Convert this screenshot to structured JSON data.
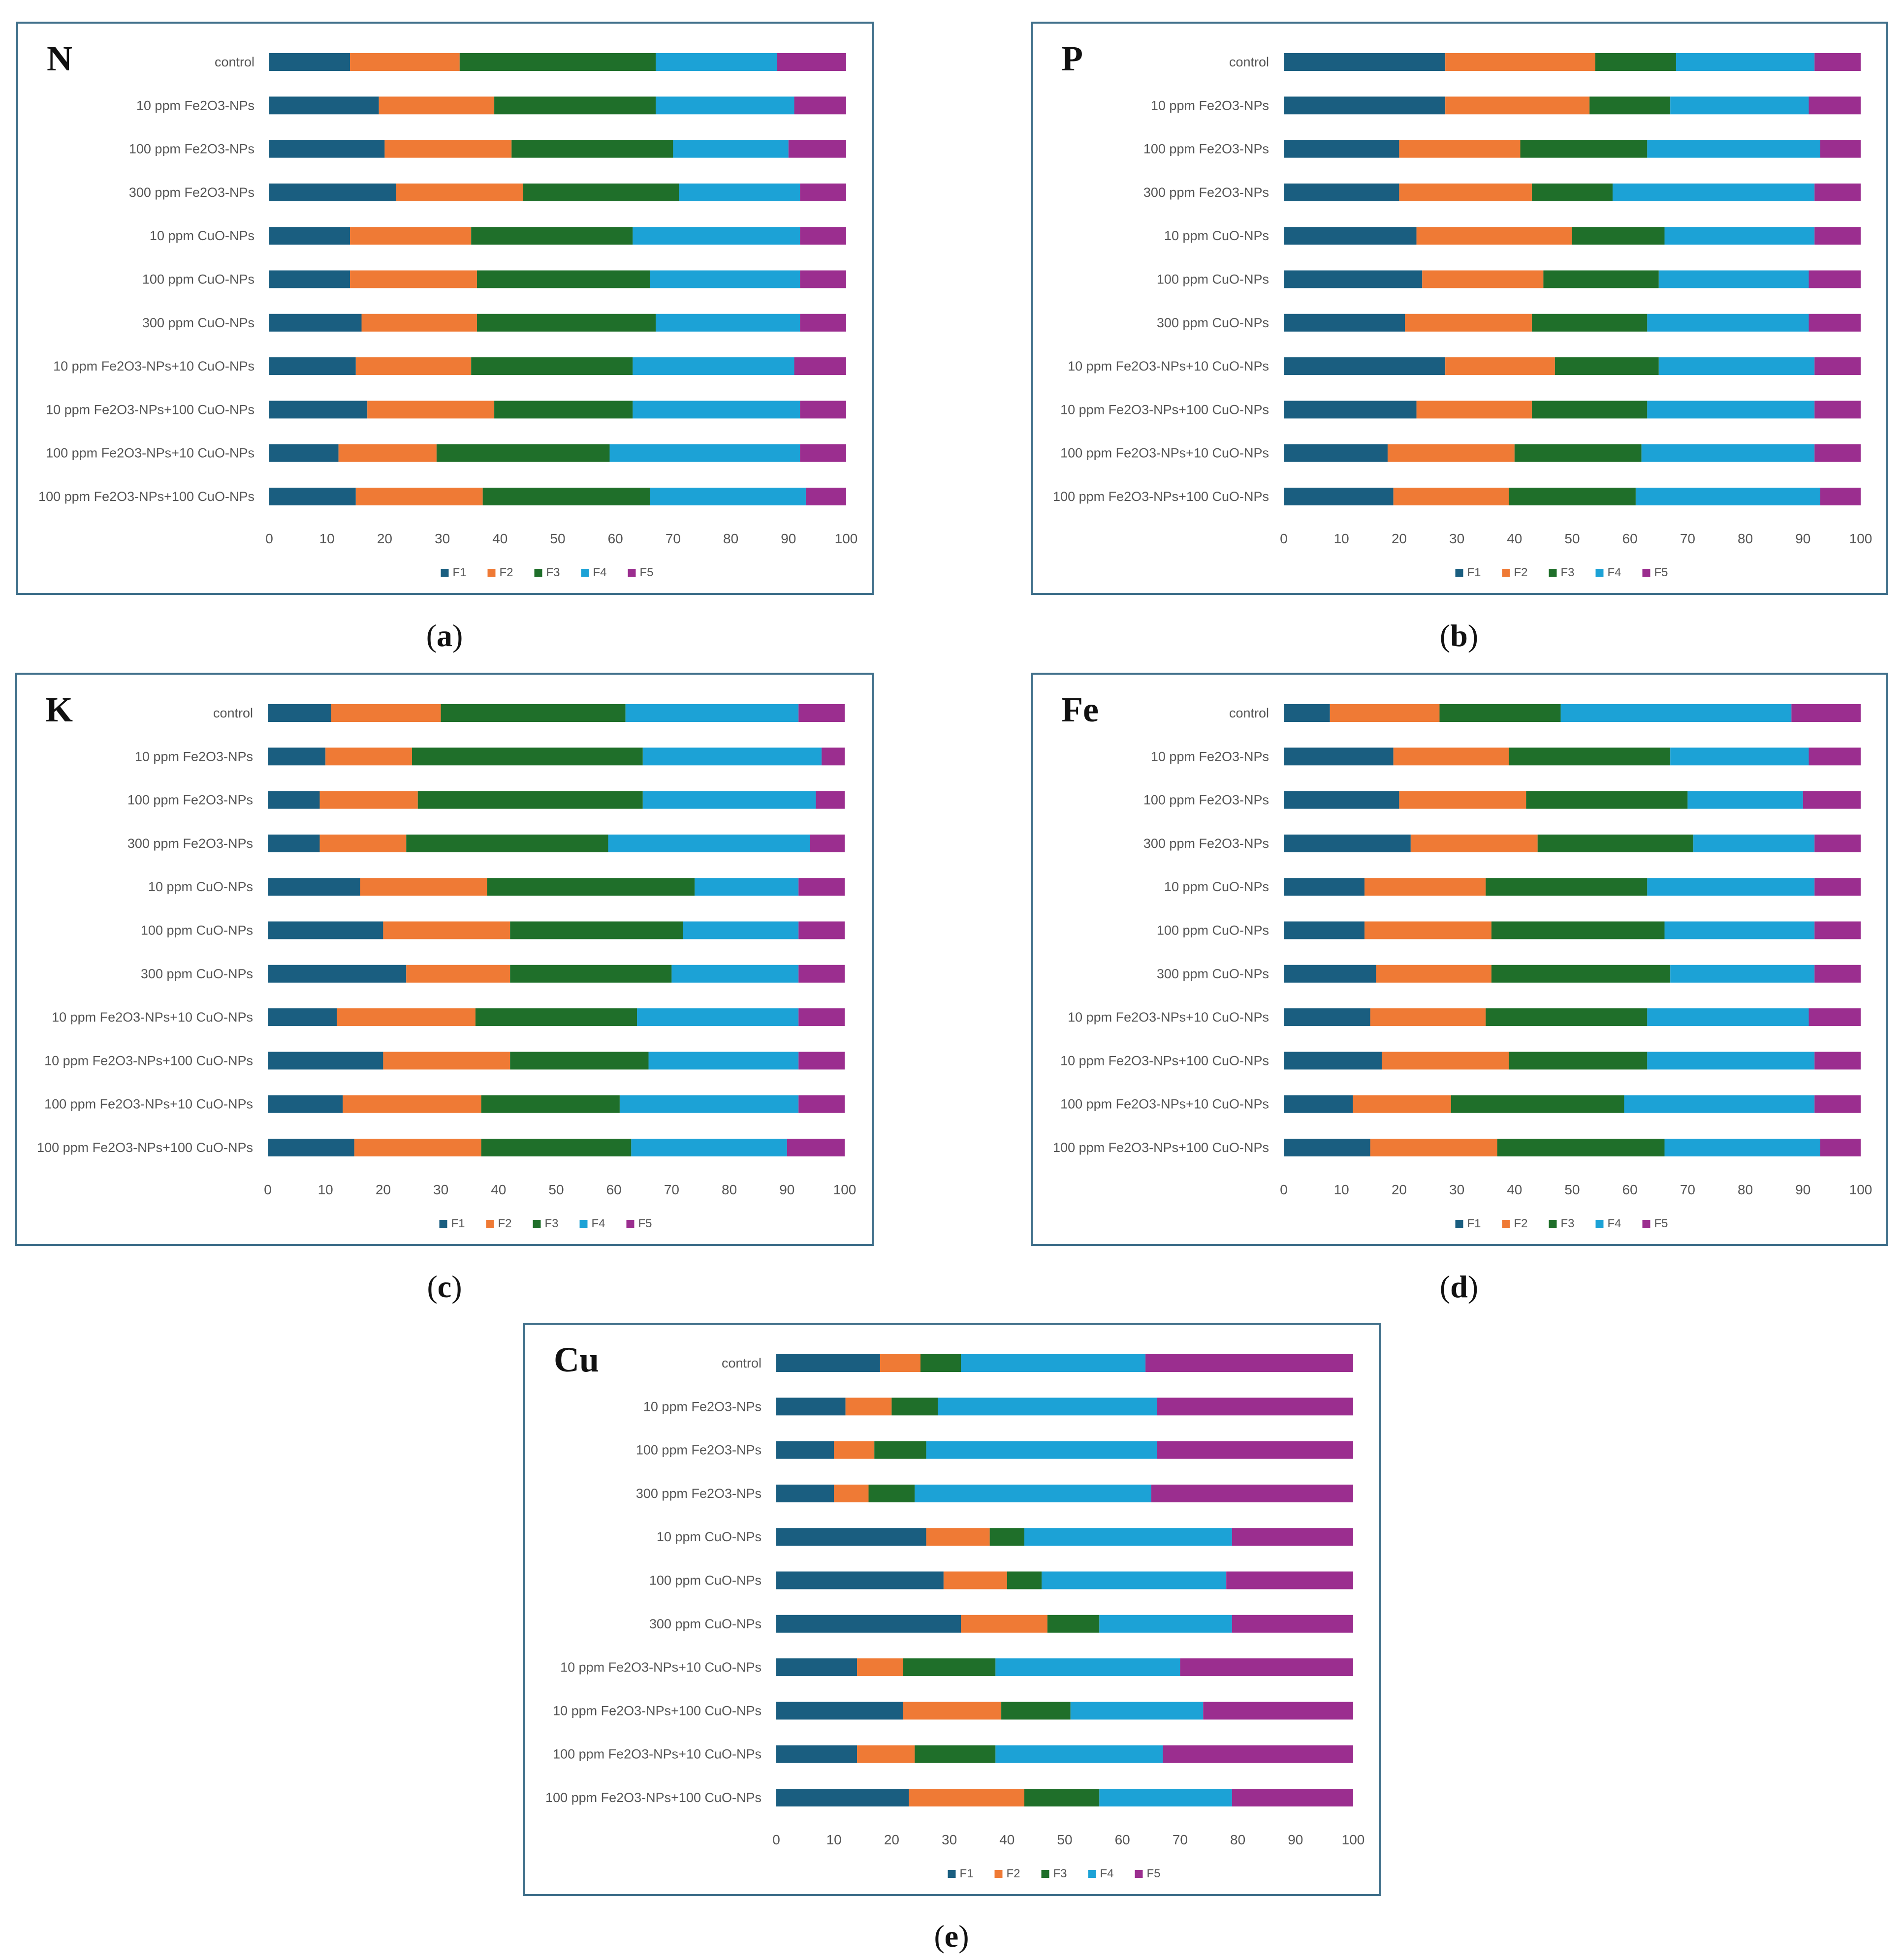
{
  "colors": {
    "F1": "#1a5e80",
    "F2": "#ef7a35",
    "F3": "#1f6f2a",
    "F4": "#1ca2d6",
    "F5": "#9b2e8f"
  },
  "chart_data": [
    {
      "type": "bar",
      "panel_letter": "N",
      "caption": "a",
      "categories": [
        "control",
        "10 ppm Fe2O3-NPs",
        "100 ppm Fe2O3-NPs",
        "300 ppm Fe2O3-NPs",
        "10 ppm CuO-NPs",
        "100 ppm CuO-NPs",
        "300 ppm CuO-NPs",
        "10 ppm Fe2O3-NPs+10 CuO-NPs",
        "10 ppm Fe2O3-NPs+100 CuO-NPs",
        "100 ppm Fe2O3-NPs+10 CuO-NPs",
        "100 ppm Fe2O3-NPs+100 CuO-NPs"
      ],
      "xlim": [
        0,
        100
      ],
      "xticks": [
        "0",
        "10",
        "20",
        "30",
        "40",
        "50",
        "60",
        "70",
        "80",
        "90",
        "100"
      ],
      "legend_position": "bottom",
      "series": [
        {
          "name": "F1",
          "values": [
            14,
            19,
            20,
            22,
            14,
            14,
            16,
            15,
            17,
            12,
            15
          ]
        },
        {
          "name": "F2",
          "values": [
            19,
            20,
            22,
            22,
            21,
            22,
            20,
            20,
            22,
            17,
            22
          ]
        },
        {
          "name": "F3",
          "values": [
            34,
            28,
            28,
            27,
            28,
            30,
            31,
            28,
            24,
            30,
            29
          ]
        },
        {
          "name": "F4",
          "values": [
            21,
            24,
            20,
            21,
            29,
            26,
            25,
            28,
            29,
            33,
            27
          ]
        },
        {
          "name": "F5",
          "values": [
            12,
            9,
            10,
            8,
            8,
            8,
            8,
            9,
            8,
            8,
            7
          ]
        }
      ]
    },
    {
      "type": "bar",
      "panel_letter": "P",
      "caption": "b",
      "categories": [
        "control",
        "10 ppm Fe2O3-NPs",
        "100 ppm Fe2O3-NPs",
        "300 ppm Fe2O3-NPs",
        "10 ppm CuO-NPs",
        "100 ppm CuO-NPs",
        "300 ppm CuO-NPs",
        "10 ppm Fe2O3-NPs+10 CuO-NPs",
        "10 ppm Fe2O3-NPs+100 CuO-NPs",
        "100 ppm Fe2O3-NPs+10 CuO-NPs",
        "100 ppm Fe2O3-NPs+100 CuO-NPs"
      ],
      "xlim": [
        0,
        100
      ],
      "xticks": [
        "0",
        "10",
        "20",
        "30",
        "40",
        "50",
        "60",
        "70",
        "80",
        "90",
        "100"
      ],
      "legend_position": "bottom",
      "series": [
        {
          "name": "F1",
          "values": [
            28,
            28,
            20,
            20,
            23,
            24,
            21,
            28,
            23,
            18,
            19
          ]
        },
        {
          "name": "F2",
          "values": [
            26,
            25,
            21,
            23,
            27,
            21,
            22,
            19,
            20,
            22,
            20
          ]
        },
        {
          "name": "F3",
          "values": [
            14,
            14,
            22,
            14,
            16,
            20,
            20,
            18,
            20,
            22,
            22
          ]
        },
        {
          "name": "F4",
          "values": [
            24,
            24,
            30,
            35,
            26,
            26,
            28,
            27,
            29,
            30,
            32
          ]
        },
        {
          "name": "F5",
          "values": [
            8,
            9,
            7,
            8,
            8,
            9,
            9,
            8,
            8,
            8,
            7
          ]
        }
      ]
    },
    {
      "type": "bar",
      "panel_letter": "K",
      "caption": "c",
      "categories": [
        "control",
        "10 ppm Fe2O3-NPs",
        "100 ppm Fe2O3-NPs",
        "300 ppm Fe2O3-NPs",
        "10 ppm CuO-NPs",
        "100 ppm CuO-NPs",
        "300 ppm CuO-NPs",
        "10 ppm Fe2O3-NPs+10 CuO-NPs",
        "10 ppm Fe2O3-NPs+100 CuO-NPs",
        "100 ppm Fe2O3-NPs+10 CuO-NPs",
        "100 ppm Fe2O3-NPs+100 CuO-NPs"
      ],
      "xlim": [
        0,
        100
      ],
      "xticks": [
        "0",
        "10",
        "20",
        "30",
        "40",
        "50",
        "60",
        "70",
        "80",
        "90",
        "100"
      ],
      "legend_position": "bottom",
      "series": [
        {
          "name": "F1",
          "values": [
            11,
            10,
            9,
            9,
            16,
            20,
            24,
            12,
            20,
            13,
            15
          ]
        },
        {
          "name": "F2",
          "values": [
            19,
            15,
            17,
            15,
            22,
            22,
            18,
            24,
            22,
            24,
            22
          ]
        },
        {
          "name": "F3",
          "values": [
            32,
            40,
            39,
            35,
            36,
            30,
            28,
            28,
            24,
            24,
            26
          ]
        },
        {
          "name": "F4",
          "values": [
            30,
            31,
            30,
            35,
            18,
            20,
            22,
            28,
            26,
            31,
            27
          ]
        },
        {
          "name": "F5",
          "values": [
            8,
            4,
            5,
            6,
            8,
            8,
            8,
            8,
            8,
            8,
            10
          ]
        }
      ]
    },
    {
      "type": "bar",
      "panel_letter": "Fe",
      "caption": "d",
      "categories": [
        "control",
        "10 ppm Fe2O3-NPs",
        "100 ppm Fe2O3-NPs",
        "300 ppm Fe2O3-NPs",
        "10 ppm CuO-NPs",
        "100 ppm CuO-NPs",
        "300 ppm CuO-NPs",
        "10 ppm Fe2O3-NPs+10 CuO-NPs",
        "10 ppm Fe2O3-NPs+100 CuO-NPs",
        "100 ppm Fe2O3-NPs+10 CuO-NPs",
        "100 ppm Fe2O3-NPs+100 CuO-NPs"
      ],
      "xlim": [
        0,
        100
      ],
      "xticks": [
        "0",
        "10",
        "20",
        "30",
        "40",
        "50",
        "60",
        "70",
        "80",
        "90",
        "100"
      ],
      "legend_position": "bottom",
      "series": [
        {
          "name": "F1",
          "values": [
            8,
            19,
            20,
            22,
            14,
            14,
            16,
            15,
            17,
            12,
            15
          ]
        },
        {
          "name": "F2",
          "values": [
            19,
            20,
            22,
            22,
            21,
            22,
            20,
            20,
            22,
            17,
            22
          ]
        },
        {
          "name": "F3",
          "values": [
            21,
            28,
            28,
            27,
            28,
            30,
            31,
            28,
            24,
            30,
            29
          ]
        },
        {
          "name": "F4",
          "values": [
            40,
            24,
            20,
            21,
            29,
            26,
            25,
            28,
            29,
            33,
            27
          ]
        },
        {
          "name": "F5",
          "values": [
            12,
            9,
            10,
            8,
            8,
            8,
            8,
            9,
            8,
            8,
            7
          ]
        }
      ]
    },
    {
      "type": "bar",
      "panel_letter": "Cu",
      "caption": "e",
      "categories": [
        "control",
        "10 ppm Fe2O3-NPs",
        "100 ppm Fe2O3-NPs",
        "300 ppm Fe2O3-NPs",
        "10 ppm CuO-NPs",
        "100 ppm CuO-NPs",
        "300 ppm CuO-NPs",
        "10 ppm Fe2O3-NPs+10 CuO-NPs",
        "10 ppm Fe2O3-NPs+100 CuO-NPs",
        "100 ppm Fe2O3-NPs+10 CuO-NPs",
        "100 ppm Fe2O3-NPs+100 CuO-NPs"
      ],
      "xlim": [
        0,
        100
      ],
      "xticks": [
        "0",
        "10",
        "20",
        "30",
        "40",
        "50",
        "60",
        "70",
        "80",
        "90",
        "100"
      ],
      "legend_position": "bottom",
      "series": [
        {
          "name": "F1",
          "values": [
            18,
            12,
            10,
            10,
            26,
            29,
            32,
            14,
            22,
            14,
            23
          ]
        },
        {
          "name": "F2",
          "values": [
            7,
            8,
            7,
            6,
            11,
            11,
            15,
            8,
            17,
            10,
            20
          ]
        },
        {
          "name": "F3",
          "values": [
            7,
            8,
            9,
            8,
            6,
            6,
            9,
            16,
            12,
            14,
            13
          ]
        },
        {
          "name": "F4",
          "values": [
            32,
            38,
            40,
            41,
            36,
            32,
            23,
            32,
            23,
            29,
            23
          ]
        },
        {
          "name": "F5",
          "values": [
            36,
            34,
            34,
            35,
            21,
            22,
            21,
            30,
            26,
            33,
            21
          ]
        }
      ]
    }
  ]
}
